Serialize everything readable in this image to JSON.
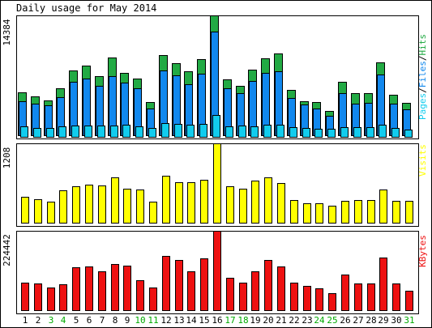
{
  "title": "Daily usage for May 2014",
  "colors": {
    "hits": "#22aa44",
    "files": "#1188ee",
    "pages": "#11ccee",
    "visits": "#ffff00",
    "kbytes": "#ee1111",
    "weekday_label": "#000000",
    "weekend_label": "#00aa00"
  },
  "chart_data": [
    {
      "type": "bar",
      "panel": "pages-files-hits",
      "ylabel_parts": [
        "Pages",
        "Files",
        "Hits"
      ],
      "ymax_label": "14384",
      "ylim": [
        0,
        14384
      ],
      "categories": [
        "1",
        "2",
        "3",
        "4",
        "5",
        "6",
        "7",
        "8",
        "9",
        "10",
        "11",
        "12",
        "13",
        "14",
        "15",
        "16",
        "17",
        "18",
        "19",
        "20",
        "21",
        "22",
        "23",
        "24",
        "25",
        "26",
        "27",
        "28",
        "29",
        "30",
        "31"
      ],
      "weekend_days": [
        3,
        4,
        10,
        11,
        17,
        18,
        24,
        25,
        31
      ],
      "series": [
        {
          "name": "Hits",
          "values": [
            5160,
            4670,
            4150,
            5610,
            7800,
            8310,
            7080,
            9370,
            7440,
            6790,
            3990,
            9610,
            8670,
            7670,
            9090,
            14384,
            6730,
            5890,
            7850,
            9280,
            9850,
            5430,
            4100,
            3960,
            2880,
            6370,
            5060,
            5050,
            8790,
            4860,
            3870
          ]
        },
        {
          "name": "Files",
          "values": [
            4050,
            3810,
            3620,
            4610,
            6370,
            6850,
            5960,
            7140,
            6290,
            5640,
            3230,
            7810,
            7200,
            6120,
            7410,
            12420,
            5650,
            5010,
            6540,
            7500,
            7670,
            4450,
            3660,
            3230,
            2340,
            5080,
            3830,
            3890,
            7290,
            3830,
            3080
          ]
        },
        {
          "name": "Pages",
          "values": [
            1060,
            880,
            830,
            1040,
            1180,
            1140,
            1200,
            1150,
            1230,
            1090,
            840,
            1480,
            1400,
            1220,
            1350,
            2470,
            1090,
            1130,
            1110,
            1260,
            1250,
            960,
            900,
            750,
            780,
            970,
            960,
            930,
            1290,
            870,
            680
          ]
        }
      ]
    },
    {
      "type": "bar",
      "panel": "visits",
      "ylabel": "Visits",
      "ymax_label": "1208",
      "ylim": [
        0,
        1208
      ],
      "categories": [
        "1",
        "2",
        "3",
        "4",
        "5",
        "6",
        "7",
        "8",
        "9",
        "10",
        "11",
        "12",
        "13",
        "14",
        "15",
        "16",
        "17",
        "18",
        "19",
        "20",
        "21",
        "22",
        "23",
        "24",
        "25",
        "26",
        "27",
        "28",
        "29",
        "30",
        "31"
      ],
      "series": [
        {
          "name": "Visits",
          "values": [
            390,
            360,
            320,
            490,
            550,
            580,
            570,
            690,
            520,
            510,
            320,
            710,
            620,
            620,
            650,
            1208,
            560,
            520,
            640,
            690,
            610,
            340,
            300,
            300,
            260,
            330,
            340,
            350,
            500,
            330,
            330
          ]
        }
      ]
    },
    {
      "type": "bar",
      "panel": "kbytes",
      "ylabel": "KBytes",
      "ymax_label": "224442",
      "ylim": [
        0,
        224442
      ],
      "categories": [
        "1",
        "2",
        "3",
        "4",
        "5",
        "6",
        "7",
        "8",
        "9",
        "10",
        "11",
        "12",
        "13",
        "14",
        "15",
        "16",
        "17",
        "18",
        "19",
        "20",
        "21",
        "22",
        "23",
        "24",
        "25",
        "26",
        "27",
        "28",
        "29",
        "30",
        "31"
      ],
      "series": [
        {
          "name": "KBytes",
          "values": [
            77800,
            75600,
            64300,
            74000,
            122000,
            124000,
            110000,
            130000,
            127000,
            84000,
            63600,
            153000,
            141000,
            110000,
            147000,
            224442,
            92300,
            78800,
            109000,
            141000,
            123000,
            77300,
            69400,
            61500,
            47800,
            100000,
            75000,
            75300,
            149000,
            75100,
            54400
          ]
        }
      ]
    }
  ]
}
